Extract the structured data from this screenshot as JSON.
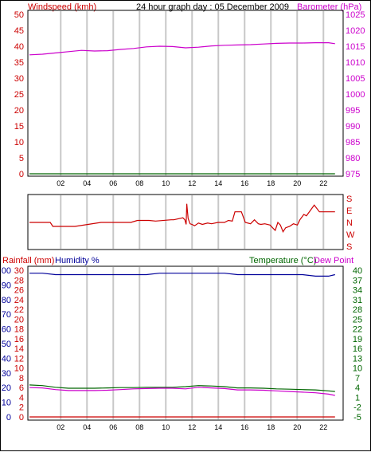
{
  "header": {
    "left_label": "Windspeed (kmh)",
    "title": "24 hour graph day : 05 December 2009",
    "right_label": "Barometer (hPa)"
  },
  "colors": {
    "windspeed": "#cc0000",
    "barometer": "#cc00cc",
    "wind_direction": "#cc0000",
    "rainfall": "#cc0000",
    "humidity": "#000099",
    "temperature": "#006600",
    "dew_point": "#cc00cc",
    "grid": "#c8c8c8",
    "left_axis_blue": "#000099"
  },
  "panel3_header": {
    "rainfall_label": "Rainfall (mm)",
    "humidity_label": "Humidity %",
    "temperature_label": "Temperature (°C)",
    "dew_point_label": "Dew Point"
  },
  "chart_data": [
    {
      "type": "line",
      "title": "24 hour graph day : 05 December 2009",
      "x": [
        0,
        1,
        2,
        3,
        4,
        5,
        6,
        7,
        8,
        9,
        10,
        11,
        12,
        13,
        14,
        15,
        16,
        17,
        18,
        19,
        20,
        21,
        22,
        23,
        23.5
      ],
      "xticks": [
        "02",
        "04",
        "06",
        "08",
        "10",
        "12",
        "14",
        "16",
        "18",
        "20",
        "22"
      ],
      "y_left_ticks": [
        "0",
        "5",
        "10",
        "15",
        "20",
        "25",
        "30",
        "35",
        "40",
        "45",
        "50"
      ],
      "y_right_ticks": [
        "975",
        "980",
        "985",
        "990",
        "995",
        "1000",
        "1005",
        "1010",
        "1015",
        "1020",
        "1025"
      ],
      "ylim_left": [
        0,
        50
      ],
      "ylim_right": [
        975,
        1025
      ],
      "series": [
        {
          "name": "Windspeed (kmh)",
          "axis": "left",
          "values": [
            0,
            0,
            0,
            0,
            0,
            0,
            0,
            0,
            0,
            0,
            0,
            0,
            0,
            0,
            0,
            0,
            0,
            0,
            0,
            0,
            0,
            0,
            0,
            0,
            0
          ]
        },
        {
          "name": "Barometer (hPa)",
          "axis": "right",
          "values": [
            1012.3,
            1012.5,
            1012.9,
            1013.3,
            1013.7,
            1013.5,
            1013.6,
            1014.0,
            1014.3,
            1014.8,
            1015.0,
            1014.9,
            1014.5,
            1014.7,
            1015.1,
            1015.3,
            1015.4,
            1015.5,
            1015.7,
            1015.9,
            1016.0,
            1016.0,
            1016.1,
            1016.1,
            1015.8
          ]
        }
      ]
    },
    {
      "type": "line",
      "x": [
        0,
        1.6,
        1.8,
        3.5,
        5.5,
        7.8,
        8.3,
        9.2,
        9.7,
        10.9,
        11.1,
        11.8,
        11.95,
        12.05,
        12.1,
        12.2,
        12.35,
        12.5,
        12.7,
        13.0,
        13.3,
        13.7,
        14.0,
        14.5,
        15.0,
        15.3,
        15.6,
        15.8,
        16.0,
        16.3,
        16.6,
        17.0,
        17.3,
        17.6,
        17.8,
        18.1,
        18.5,
        18.7,
        18.9,
        19.1,
        19.3,
        19.5,
        19.7,
        20.0,
        20.3,
        20.6,
        20.8,
        21.1,
        21.3,
        21.6,
        21.9,
        22.3,
        22.5,
        22.8,
        23.5
      ],
      "xticks": [
        "02",
        "04",
        "06",
        "08",
        "10",
        "12",
        "14",
        "16",
        "18",
        "20",
        "22"
      ],
      "y_right_ticks": [
        "S",
        "E",
        "N",
        "W",
        "S"
      ],
      "ylim": [
        180,
        540
      ],
      "series": [
        {
          "name": "Wind direction",
          "values": [
            360,
            360,
            330,
            330,
            360,
            360,
            375,
            375,
            370,
            380,
            380,
            395,
            380,
            345,
            500,
            390,
            350,
            345,
            335,
            355,
            345,
            355,
            350,
            360,
            360,
            375,
            370,
            440,
            440,
            440,
            360,
            350,
            380,
            350,
            345,
            350,
            340,
            320,
            300,
            360,
            340,
            290,
            320,
            330,
            350,
            340,
            380,
            420,
            410,
            450,
            490,
            440,
            440,
            440,
            440
          ]
        }
      ]
    },
    {
      "type": "line",
      "x": [
        0,
        1,
        2,
        3,
        4,
        5,
        6,
        7,
        8,
        9,
        10,
        11,
        12,
        13,
        14,
        15,
        16,
        17,
        18,
        19,
        20,
        21,
        22,
        23,
        23.5
      ],
      "xticks": [
        "02",
        "04",
        "06",
        "08",
        "10",
        "12",
        "14",
        "16",
        "18",
        "20",
        "22"
      ],
      "y_left_rain_ticks": [
        "0",
        "2",
        "4",
        "6",
        "8",
        "10",
        "12",
        "14",
        "16",
        "18",
        "20",
        "22",
        "24",
        "26",
        "28",
        "30"
      ],
      "y_left_humidity_ticks": [
        "0",
        "10",
        "20",
        "30",
        "40",
        "50",
        "60",
        "70",
        "80",
        "90",
        "100"
      ],
      "y_right_ticks": [
        "-5",
        "-2",
        "1",
        "4",
        "7",
        "10",
        "13",
        "16",
        "19",
        "22",
        "25",
        "28",
        "31",
        "34",
        "37",
        "40"
      ],
      "ylim_temp": [
        -5,
        40
      ],
      "ylim_humidity": [
        0,
        100
      ],
      "ylim_rain": [
        0,
        30
      ],
      "series": [
        {
          "name": "Humidity %",
          "axis": "humidity",
          "values": [
            98,
            98,
            97,
            97,
            97,
            97,
            97,
            97,
            97,
            97,
            98,
            98,
            98,
            98,
            98,
            98,
            97,
            97,
            97,
            97,
            97,
            97,
            96,
            96,
            97
          ]
        },
        {
          "name": "Temperature (°C)",
          "axis": "temp",
          "values": [
            4.8,
            4.6,
            4.1,
            3.8,
            3.8,
            3.8,
            3.9,
            4.0,
            4.0,
            4.1,
            4.1,
            4.1,
            4.3,
            4.6,
            4.5,
            4.3,
            3.9,
            3.9,
            3.8,
            3.6,
            3.5,
            3.4,
            3.3,
            3.0,
            2.8
          ]
        },
        {
          "name": "Dew Point",
          "axis": "temp",
          "values": [
            4.0,
            3.9,
            3.4,
            3.1,
            3.1,
            3.1,
            3.2,
            3.4,
            3.6,
            3.7,
            3.8,
            3.8,
            3.6,
            4.1,
            3.9,
            3.7,
            3.3,
            3.3,
            3.2,
            3.0,
            2.8,
            2.6,
            2.4,
            2.0,
            1.6
          ]
        },
        {
          "name": "Rainfall (mm)",
          "axis": "rain",
          "values": [
            0,
            0,
            0,
            0,
            0,
            0,
            0,
            0,
            0,
            0,
            0,
            0,
            0,
            0,
            0,
            0,
            0,
            0,
            0,
            0,
            0,
            0,
            0,
            0,
            0
          ]
        }
      ]
    }
  ]
}
